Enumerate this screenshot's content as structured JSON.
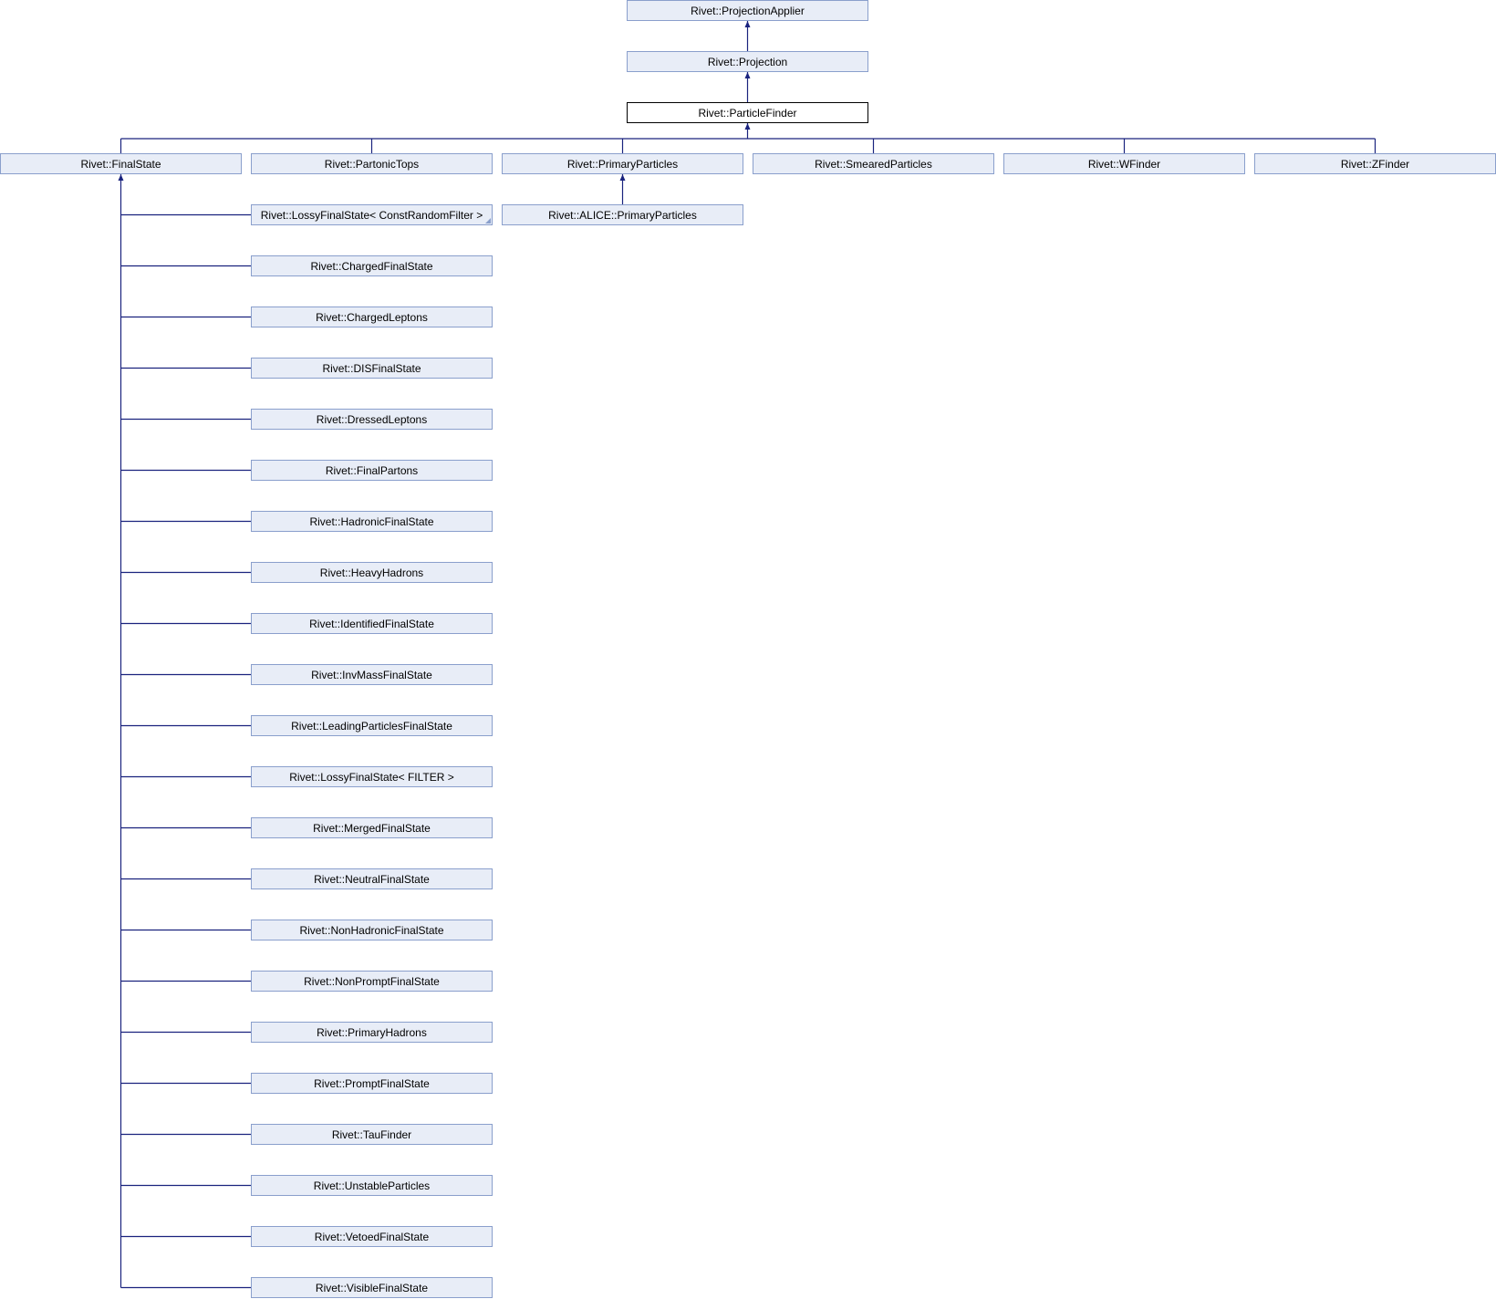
{
  "diagram": {
    "root": "Rivet::ProjectionApplier",
    "parent": "Rivet::Projection",
    "current": "Rivet::ParticleFinder",
    "children": [
      "Rivet::FinalState",
      "Rivet::PartonicTops",
      "Rivet::PrimaryParticles",
      "Rivet::SmearedParticles",
      "Rivet::WFinder",
      "Rivet::ZFinder"
    ],
    "alice_primary": "Rivet::ALICE::PrimaryParticles",
    "finalstate_children": [
      "Rivet::LossyFinalState< ConstRandomFilter >",
      "Rivet::ChargedFinalState",
      "Rivet::ChargedLeptons",
      "Rivet::DISFinalState",
      "Rivet::DressedLeptons",
      "Rivet::FinalPartons",
      "Rivet::HadronicFinalState",
      "Rivet::HeavyHadrons",
      "Rivet::IdentifiedFinalState",
      "Rivet::InvMassFinalState",
      "Rivet::LeadingParticlesFinalState",
      "Rivet::LossyFinalState< FILTER >",
      "Rivet::MergedFinalState",
      "Rivet::NeutralFinalState",
      "Rivet::NonHadronicFinalState",
      "Rivet::NonPromptFinalState",
      "Rivet::PrimaryHadrons",
      "Rivet::PromptFinalState",
      "Rivet::TauFinder",
      "Rivet::UnstableParticles",
      "Rivet::VetoedFinalState",
      "Rivet::VisibleFinalState"
    ],
    "colors": {
      "node_fill": "#e8edf7",
      "node_border": "#8a9fcc",
      "current_border": "#000000",
      "edge": "#1a237e"
    }
  }
}
